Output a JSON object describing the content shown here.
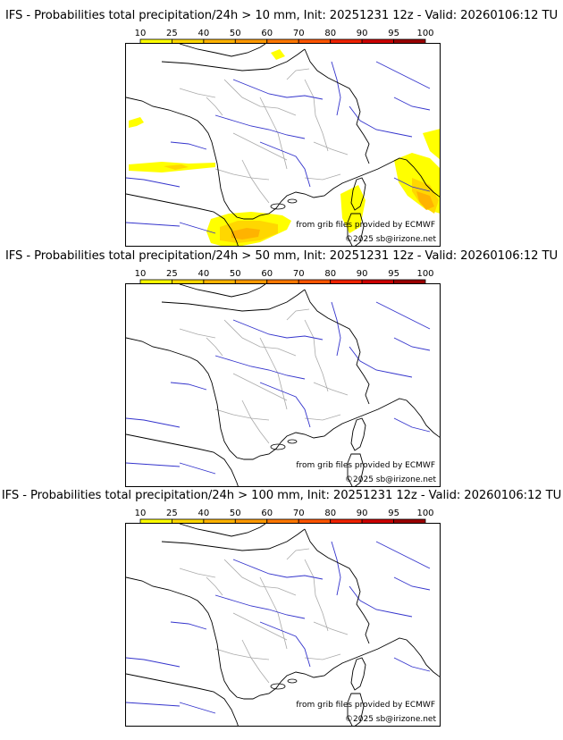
{
  "panels": [
    {
      "title": "IFS - Probabilities total precipitation/24h > 10 mm, Init: 20251231 12z - Valid: 20260106:12 TU",
      "colorbar": [
        "10",
        "25",
        "40",
        "50",
        "60",
        "70",
        "80",
        "90",
        "95",
        "100"
      ],
      "source": "from grib files provided by ECMWF",
      "copyright": "©2025 sb@irizone.net"
    },
    {
      "title": "IFS - Probabilities total precipitation/24h > 50 mm, Init: 20251231 12z - Valid: 20260106:12 TU",
      "colorbar": [
        "10",
        "25",
        "40",
        "50",
        "60",
        "70",
        "80",
        "90",
        "95",
        "100"
      ],
      "source": "from grib files provided by ECMWF",
      "copyright": "©2025 sb@irizone.net"
    },
    {
      "title": "IFS - Probabilities total precipitation/24h > 100 mm, Init: 20251231 12z - Valid: 20260106:12 TU",
      "colorbar": [
        "10",
        "25",
        "40",
        "50",
        "60",
        "70",
        "80",
        "90",
        "95",
        "100"
      ],
      "source": "from grib files provided by ECMWF",
      "copyright": "©2025 sb@irizone.net"
    }
  ],
  "colorbar_colors": [
    "#ffff00",
    "#ffd700",
    "#ffb300",
    "#ff9900",
    "#ff7700",
    "#ff5500",
    "#ee2200",
    "#cc0000",
    "#990000",
    "#660000"
  ]
}
